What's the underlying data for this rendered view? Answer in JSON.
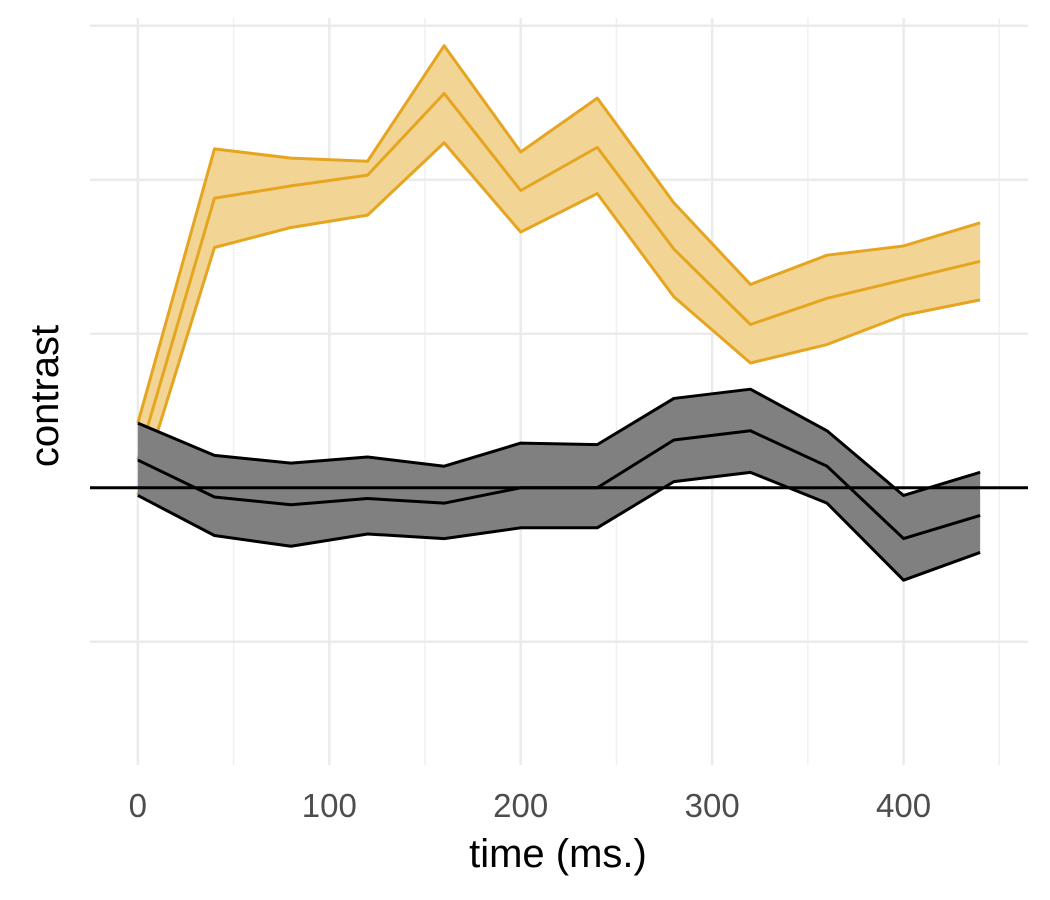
{
  "chart_data": {
    "type": "area",
    "xlabel": "time (ms.)",
    "ylabel": "contrast",
    "xlim": [
      -25,
      465
    ],
    "ylim": [
      -1.8,
      3.05
    ],
    "x_ticks": [
      0,
      100,
      200,
      300,
      400
    ],
    "y_gridlines": [
      -1,
      0,
      1,
      2,
      3
    ],
    "y_tick_labels_shown": false,
    "grid": true,
    "legend": "none",
    "reference_line": {
      "y": 0,
      "color": "#000000"
    },
    "series": [
      {
        "color": "#E6A520",
        "fill": "#F2D594",
        "x": [
          0,
          40,
          80,
          120,
          160,
          200,
          240,
          280,
          320,
          360,
          400,
          440
        ],
        "upper": [
          0.42,
          2.2,
          2.14,
          2.12,
          2.87,
          2.18,
          2.53,
          1.85,
          1.32,
          1.51,
          1.57,
          1.72
        ],
        "mean": [
          0.18,
          1.88,
          1.96,
          2.03,
          2.56,
          1.93,
          2.21,
          1.55,
          1.06,
          1.23,
          1.35,
          1.47
        ],
        "lower": [
          -0.05,
          1.56,
          1.69,
          1.77,
          2.24,
          1.66,
          1.91,
          1.24,
          0.81,
          0.93,
          1.12,
          1.22
        ]
      },
      {
        "color": "#000000",
        "fill": "#808080",
        "x": [
          0,
          40,
          80,
          120,
          160,
          200,
          240,
          280,
          320,
          360,
          400,
          440
        ],
        "upper": [
          0.42,
          0.21,
          0.16,
          0.2,
          0.14,
          0.29,
          0.28,
          0.58,
          0.64,
          0.37,
          -0.05,
          0.1
        ],
        "mean": [
          0.18,
          -0.06,
          -0.11,
          -0.07,
          -0.1,
          0.0,
          0.0,
          0.31,
          0.37,
          0.14,
          -0.33,
          -0.18
        ],
        "lower": [
          -0.05,
          -0.31,
          -0.38,
          -0.3,
          -0.33,
          -0.26,
          -0.26,
          0.04,
          0.1,
          -0.1,
          -0.6,
          -0.42
        ]
      }
    ]
  }
}
